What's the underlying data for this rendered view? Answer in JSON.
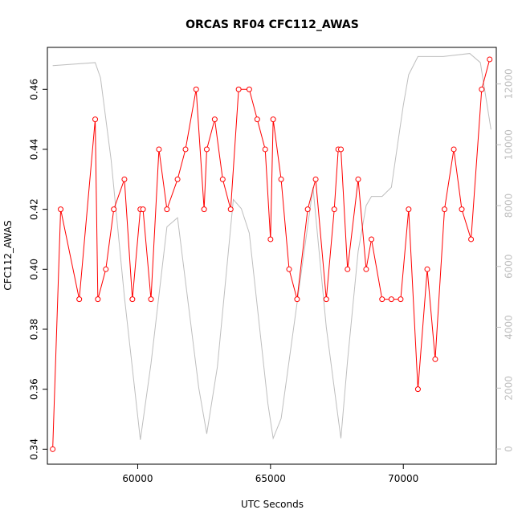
{
  "chart_data": {
    "type": "line",
    "title": "ORCAS RF04 CFC112_AWAS",
    "xlabel": "UTC Seconds",
    "ylabel": "CFC112_AWAS",
    "xlim": [
      56600,
      73500
    ],
    "ylim": [
      0.335,
      0.474
    ],
    "y2lim": [
      -500,
      13200
    ],
    "x_ticks": [
      60000,
      65000,
      70000
    ],
    "y_ticks": [
      0.34,
      0.36,
      0.38,
      0.4,
      0.42,
      0.44,
      0.46
    ],
    "y_tick_labels": [
      "0.34",
      "0.36",
      "0.38",
      "0.40",
      "0.42",
      "0.44",
      "0.46"
    ],
    "y2_ticks": [
      0,
      2000,
      4000,
      6000,
      8000,
      10000,
      12000
    ],
    "grid": false,
    "series": [
      {
        "color": "#ff0000",
        "style": "line-with-open-circles",
        "x": [
          56800,
          57100,
          57800,
          58400,
          58500,
          58800,
          59100,
          59500,
          59800,
          60100,
          60200,
          60500,
          60800,
          61100,
          61500,
          61800,
          62200,
          62500,
          62600,
          62900,
          63200,
          63500,
          63800,
          64200,
          64500,
          64800,
          65000,
          65100,
          65400,
          65700,
          66000,
          66400,
          66700,
          67100,
          67400,
          67550,
          67650,
          67900,
          68300,
          68600,
          68800,
          69200,
          69550,
          69900,
          70200,
          70550,
          70900,
          71200,
          71550,
          71900,
          72200,
          72550,
          72950,
          73250
        ],
        "y": [
          0.34,
          0.42,
          0.39,
          0.45,
          0.39,
          0.4,
          0.42,
          0.43,
          0.39,
          0.42,
          0.42,
          0.39,
          0.44,
          0.42,
          0.43,
          0.44,
          0.46,
          0.42,
          0.44,
          0.45,
          0.43,
          0.42,
          0.46,
          0.46,
          0.45,
          0.44,
          0.41,
          0.45,
          0.43,
          0.4,
          0.39,
          0.42,
          0.43,
          0.39,
          0.42,
          0.44,
          0.44,
          0.4,
          0.43,
          0.4,
          0.41,
          0.39,
          0.39,
          0.39,
          0.42,
          0.36,
          0.4,
          0.37,
          0.42,
          0.44,
          0.42,
          0.41,
          0.46,
          0.47
        ]
      },
      {
        "color": "#bebebe",
        "style": "line",
        "axis": "right",
        "x": [
          56800,
          58400,
          58600,
          59000,
          59500,
          60100,
          60500,
          61100,
          61500,
          62300,
          62600,
          63000,
          63600,
          63900,
          64200,
          64900,
          65100,
          65400,
          66000,
          66600,
          67100,
          67550,
          67650,
          67900,
          68300,
          68600,
          68800,
          69200,
          69550,
          70000,
          70200,
          70550,
          71500,
          72500,
          72900,
          73300
        ],
        "y": [
          12600,
          12700,
          12200,
          9500,
          5000,
          300,
          2800,
          7300,
          7600,
          2000,
          500,
          2700,
          8200,
          7900,
          7100,
          1500,
          350,
          1000,
          4800,
          8600,
          4000,
          1000,
          350,
          2900,
          6500,
          8000,
          8300,
          8300,
          8600,
          11300,
          12300,
          12900,
          12900,
          13000,
          12700,
          10500
        ]
      }
    ]
  }
}
